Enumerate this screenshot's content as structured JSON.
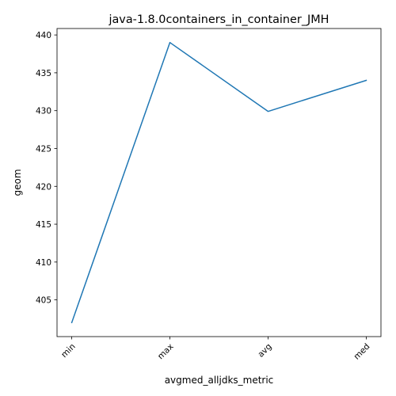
{
  "chart_data": {
    "type": "line",
    "title": "java-1.8.0containers_in_container_JMH",
    "xlabel": "avgmed_alljdks_metric",
    "ylabel": "geom",
    "categories": [
      "min",
      "max",
      "avg",
      "med"
    ],
    "series": [
      {
        "values": [
          402.0,
          439.0,
          429.9,
          434.0
        ]
      }
    ],
    "ylim": [
      400.15,
      440.85
    ],
    "yticks": [
      405,
      410,
      415,
      420,
      425,
      430,
      435,
      440
    ],
    "grid": false,
    "line_color": "#1f77b4"
  }
}
